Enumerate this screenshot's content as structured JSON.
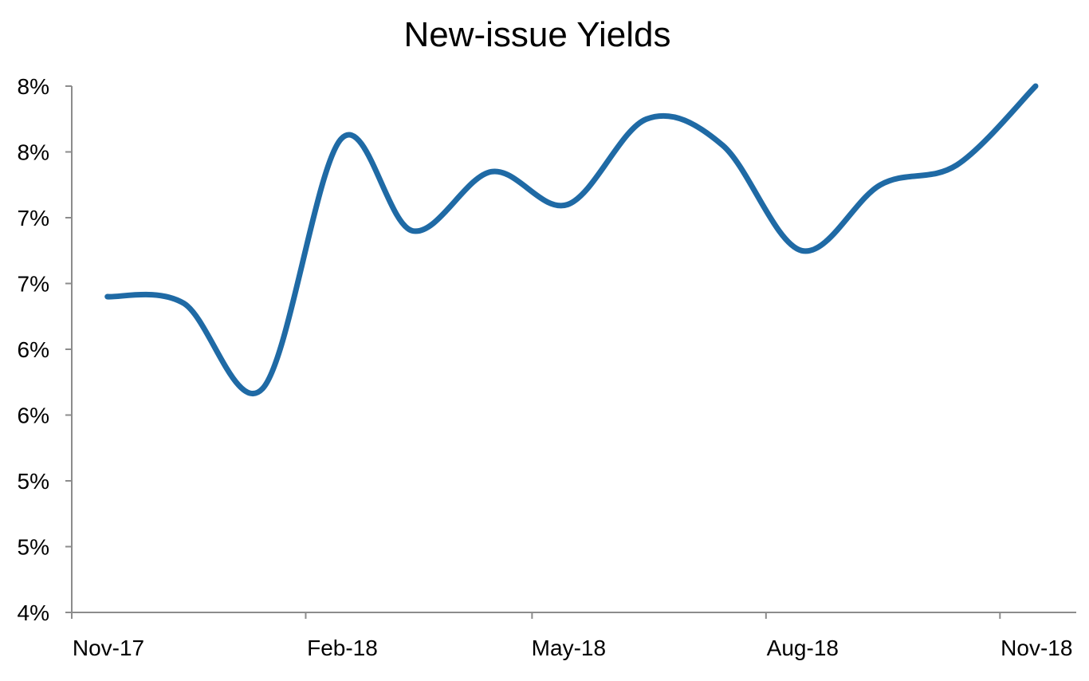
{
  "chart_data": {
    "type": "line",
    "title": "New-issue Yields",
    "xlabel": "",
    "ylabel": "",
    "x_tick_labels": [
      "Nov-17",
      "Feb-18",
      "May-18",
      "Aug-18",
      "Nov-18"
    ],
    "y_tick_labels": [
      "4%",
      "5%",
      "5%",
      "6%",
      "6%",
      "7%",
      "7%",
      "8%",
      "8%"
    ],
    "ylim": [
      4.0,
      8.0
    ],
    "grid": false,
    "legend": "none",
    "series": [
      {
        "color": "#1f6aa5",
        "x": [
          "2017-11-15",
          "2017-12-15",
          "2018-01-15",
          "2018-02-15",
          "2018-03-15",
          "2018-04-15",
          "2018-05-15",
          "2018-06-15",
          "2018-07-15",
          "2018-08-15",
          "2018-09-15",
          "2018-10-15",
          "2018-11-15"
        ],
        "values": [
          6.4,
          6.35,
          5.7,
          7.6,
          6.9,
          7.35,
          7.1,
          7.75,
          7.55,
          6.75,
          7.25,
          7.4,
          8.0
        ]
      }
    ]
  }
}
